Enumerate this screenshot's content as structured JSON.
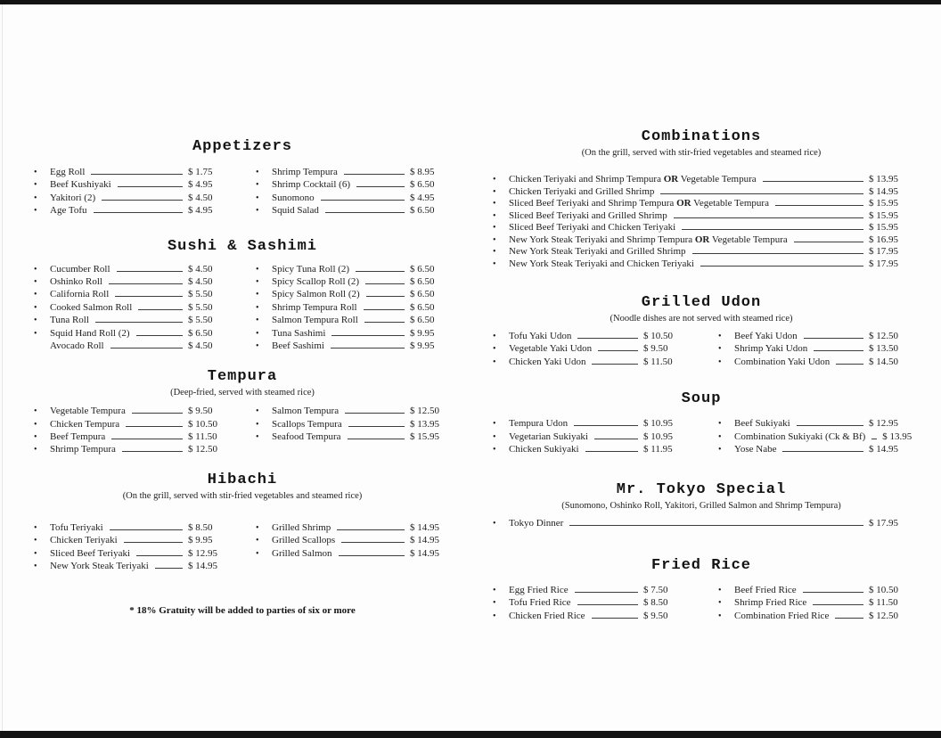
{
  "document": {
    "kind": "scanned restaurant menu",
    "ink_color": "#1e1e1e",
    "paper_color": "#fdfdfd",
    "scan_border_color": "#131313"
  },
  "left_page": {
    "sections": [
      {
        "id": "appetizers",
        "title": "Appetizers",
        "subtitle": "",
        "columns": [
          [
            {
              "name": "Egg Roll",
              "price": "$ 1.75"
            },
            {
              "name": "Beef Kushiyaki",
              "price": "$ 4.95"
            },
            {
              "name": "Yakitori (2)",
              "price": "$ 4.50"
            },
            {
              "name": "Age Tofu",
              "price": "$ 4.95"
            }
          ],
          [
            {
              "name": "Shrimp Tempura",
              "price": "$ 8.95"
            },
            {
              "name": "Shrimp Cocktail (6)",
              "price": "$ 6.50"
            },
            {
              "name": "Sunomono",
              "price": "$ 4.95"
            },
            {
              "name": "Squid Salad",
              "price": "$ 6.50"
            }
          ]
        ]
      },
      {
        "id": "sushi-sashimi",
        "title": "Sushi & Sashimi",
        "subtitle": "",
        "columns": [
          [
            {
              "name": "Cucumber Roll",
              "price": "$ 4.50"
            },
            {
              "name": "Oshinko Roll",
              "price": "$ 4.50"
            },
            {
              "name": "California Roll",
              "price": "$ 5.50"
            },
            {
              "name": "Cooked Salmon Roll",
              "price": "$ 5.50"
            },
            {
              "name": "Tuna Roll",
              "price": "$ 5.50"
            },
            {
              "name": "Squid Hand Roll (2)",
              "price": "$ 6.50"
            },
            {
              "name": "Avocado Roll",
              "price": "$ 4.50",
              "bullet": false
            }
          ],
          [
            {
              "name": "Spicy Tuna Roll (2)",
              "price": "$ 6.50"
            },
            {
              "name": "Spicy Scallop Roll (2)",
              "price": "$ 6.50"
            },
            {
              "name": "Spicy Salmon Roll (2)",
              "price": "$ 6.50"
            },
            {
              "name": "Shrimp Tempura Roll",
              "price": "$ 6.50"
            },
            {
              "name": "Salmon Tempura Roll",
              "price": "$ 6.50"
            },
            {
              "name": "Tuna Sashimi",
              "price": "$ 9.95"
            },
            {
              "name": "Beef Sashimi",
              "price": "$ 9.95"
            }
          ]
        ]
      },
      {
        "id": "tempura",
        "title": "Tempura",
        "subtitle": "(Deep-fried, served with steamed rice)",
        "columns": [
          [
            {
              "name": "Vegetable Tempura",
              "price": "$ 9.50"
            },
            {
              "name": "Chicken Tempura",
              "price": "$ 10.50"
            },
            {
              "name": "Beef Tempura",
              "price": "$ 11.50"
            },
            {
              "name": "Shrimp Tempura",
              "price": "$ 12.50"
            }
          ],
          [
            {
              "name": "Salmon Tempura",
              "price": "$ 12.50"
            },
            {
              "name": "Scallops Tempura",
              "price": "$ 13.95"
            },
            {
              "name": "Seafood Tempura",
              "price": "$ 15.95"
            }
          ]
        ]
      },
      {
        "id": "hibachi",
        "title": "Hibachi",
        "subtitle": "(On the grill, served with stir-fried vegetables and steamed rice)",
        "columns": [
          [
            {
              "name": "Tofu Teriyaki",
              "price": "$ 8.50"
            },
            {
              "name": "Chicken Teriyaki",
              "price": "$ 9.95"
            },
            {
              "name": "Sliced Beef Teriyaki",
              "price": "$ 12.95"
            },
            {
              "name": "New York Steak Teriyaki",
              "price": "$ 14.95"
            }
          ],
          [
            {
              "name": "Grilled Shrimp",
              "price": "$ 14.95"
            },
            {
              "name": "Grilled Scallops",
              "price": "$ 14.95"
            },
            {
              "name": "Grilled Salmon",
              "price": "$ 14.95"
            }
          ]
        ]
      }
    ],
    "footnote": "* 18% Gratuity will be added to parties of six or more"
  },
  "right_page": {
    "sections": [
      {
        "id": "combinations",
        "title": "Combinations",
        "subtitle": "(On the grill, served with stir-fried vegetables and steamed rice)",
        "columns": [
          [
            {
              "name": "Chicken Teriyaki and Shrimp Tempura OR Vegetable Tempura",
              "price": "$ 13.95"
            },
            {
              "name": "Chicken Teriyaki and Grilled Shrimp",
              "price": "$ 14.95"
            },
            {
              "name": "Sliced Beef Teriyaki and Shrimp Tempura OR Vegetable Tempura",
              "price": "$ 15.95"
            },
            {
              "name": "Sliced Beef Teriyaki and Grilled Shrimp",
              "price": "$ 15.95"
            },
            {
              "name": "Sliced Beef Teriyaki and Chicken Teriyaki",
              "price": "$ 15.95"
            },
            {
              "name": "New York Steak Teriyaki and Shrimp Tempura OR Vegetable Tempura",
              "price": "$ 16.95"
            },
            {
              "name": "New York Steak Teriyaki and Grilled Shrimp",
              "price": "$ 17.95"
            },
            {
              "name": "New York Steak Teriyaki and Chicken Teriyaki",
              "price": "$ 17.95"
            }
          ]
        ]
      },
      {
        "id": "grilled-udon",
        "title": "Grilled Udon",
        "subtitle": "(Noodle dishes are not served with steamed rice)",
        "columns": [
          [
            {
              "name": "Tofu Yaki Udon",
              "price": "$ 10.50"
            },
            {
              "name": "Vegetable Yaki Udon",
              "price": "$ 9.50"
            },
            {
              "name": "Chicken Yaki Udon",
              "price": "$ 11.50"
            }
          ],
          [
            {
              "name": "Beef Yaki Udon",
              "price": "$ 12.50"
            },
            {
              "name": "Shrimp Yaki Udon",
              "price": "$ 13.50"
            },
            {
              "name": "Combination Yaki Udon",
              "price": "$ 14.50"
            }
          ]
        ]
      },
      {
        "id": "soup",
        "title": "Soup",
        "subtitle": "",
        "columns": [
          [
            {
              "name": "Tempura Udon",
              "price": "$ 10.95"
            },
            {
              "name": "Vegetarian Sukiyaki",
              "price": "$ 10.95"
            },
            {
              "name": "Chicken Sukiyaki",
              "price": "$ 11.95"
            }
          ],
          [
            {
              "name": "Beef Sukiyaki",
              "price": "$ 12.95"
            },
            {
              "name": "Combination Sukiyaki (Ck & Bf)",
              "price": "$ 13.95"
            },
            {
              "name": "Yose Nabe",
              "price": "$ 14.95"
            }
          ]
        ]
      },
      {
        "id": "tokyo-special",
        "title": "Mr. Tokyo Special",
        "subtitle": "(Sunomono, Oshinko Roll, Yakitori, Grilled Salmon and Shrimp Tempura)",
        "columns": [
          [
            {
              "name": "Tokyo Dinner",
              "price": "$ 17.95"
            }
          ]
        ]
      },
      {
        "id": "fried-rice",
        "title": "Fried Rice",
        "subtitle": "",
        "columns": [
          [
            {
              "name": "Egg Fried Rice",
              "price": "$ 7.50"
            },
            {
              "name": "Tofu Fried Rice",
              "price": "$ 8.50"
            },
            {
              "name": "Chicken Fried Rice",
              "price": "$ 9.50"
            }
          ],
          [
            {
              "name": "Beef Fried Rice",
              "price": "$ 10.50"
            },
            {
              "name": "Shrimp Fried Rice",
              "price": "$ 11.50"
            },
            {
              "name": "Combination Fried Rice",
              "price": "$ 12.50"
            }
          ]
        ]
      }
    ]
  }
}
